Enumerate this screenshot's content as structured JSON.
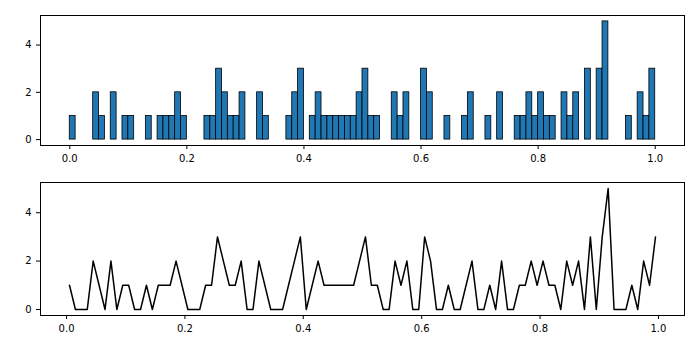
{
  "chart_data": [
    {
      "type": "histogram",
      "bins": [
        0,
        0.01,
        0.02,
        0.03,
        0.04,
        0.05,
        0.06,
        0.07,
        0.08,
        0.09,
        0.1,
        0.11,
        0.12,
        0.13,
        0.14,
        0.15,
        0.16,
        0.17,
        0.18,
        0.19,
        0.2,
        0.21,
        0.22,
        0.23,
        0.24,
        0.25,
        0.26,
        0.27,
        0.28,
        0.29,
        0.3,
        0.31,
        0.32,
        0.33,
        0.34,
        0.35,
        0.36,
        0.37,
        0.38,
        0.39,
        0.4,
        0.41,
        0.42,
        0.43,
        0.44,
        0.45,
        0.46,
        0.47,
        0.48,
        0.49,
        0.5,
        0.51,
        0.52,
        0.53,
        0.54,
        0.55,
        0.56,
        0.57,
        0.58,
        0.59,
        0.6,
        0.61,
        0.62,
        0.63,
        0.64,
        0.65,
        0.66,
        0.67,
        0.68,
        0.69,
        0.7,
        0.71,
        0.72,
        0.73,
        0.74,
        0.75,
        0.76,
        0.77,
        0.78,
        0.79,
        0.8,
        0.81,
        0.82,
        0.83,
        0.84,
        0.85,
        0.86,
        0.87,
        0.88,
        0.89,
        0.9,
        0.91,
        0.92,
        0.93,
        0.94,
        0.95,
        0.96,
        0.97,
        0.98,
        0.99,
        1
      ],
      "values": [
        1,
        0,
        0,
        0,
        2,
        1,
        0,
        2,
        0,
        1,
        1,
        0,
        0,
        1,
        0,
        1,
        1,
        1,
        2,
        1,
        0,
        0,
        0,
        1,
        1,
        3,
        2,
        1,
        1,
        2,
        0,
        0,
        2,
        1,
        0,
        0,
        0,
        1,
        2,
        3,
        0,
        1,
        2,
        1,
        1,
        1,
        1,
        1,
        1,
        2,
        3,
        1,
        1,
        0,
        0,
        2,
        1,
        2,
        0,
        0,
        3,
        2,
        0,
        0,
        1,
        0,
        0,
        1,
        2,
        0,
        0,
        1,
        0,
        2,
        0,
        0,
        1,
        1,
        2,
        1,
        2,
        1,
        1,
        0,
        2,
        1,
        2,
        0,
        3,
        0,
        3,
        5,
        0,
        0,
        0,
        1,
        0,
        2,
        1,
        3
      ],
      "color": "#1f77b4",
      "xlim": [
        -0.05,
        1.05
      ],
      "ylim": [
        -0.25,
        5.25
      ],
      "xticks": [
        {
          "value": 0,
          "label": "0.0"
        },
        {
          "value": 0.2,
          "label": "0.2"
        },
        {
          "value": 0.4,
          "label": "0.4"
        },
        {
          "value": 0.6,
          "label": "0.6"
        },
        {
          "value": 0.8,
          "label": "0.8"
        },
        {
          "value": 1,
          "label": "1.0"
        }
      ],
      "yticks": [
        0,
        2,
        4
      ]
    },
    {
      "type": "line",
      "x": [
        0.005,
        0.015,
        0.025,
        0.035,
        0.045,
        0.055,
        0.065,
        0.075,
        0.085,
        0.095,
        0.105,
        0.115,
        0.125,
        0.135,
        0.145,
        0.155,
        0.165,
        0.175,
        0.185,
        0.195,
        0.205,
        0.215,
        0.225,
        0.235,
        0.245,
        0.255,
        0.265,
        0.275,
        0.285,
        0.295,
        0.305,
        0.315,
        0.325,
        0.335,
        0.345,
        0.355,
        0.365,
        0.375,
        0.385,
        0.395,
        0.405,
        0.415,
        0.425,
        0.435,
        0.445,
        0.455,
        0.465,
        0.475,
        0.485,
        0.495,
        0.505,
        0.515,
        0.525,
        0.535,
        0.545,
        0.555,
        0.565,
        0.575,
        0.585,
        0.595,
        0.605,
        0.615,
        0.625,
        0.635,
        0.645,
        0.655,
        0.665,
        0.675,
        0.685,
        0.695,
        0.705,
        0.715,
        0.725,
        0.735,
        0.745,
        0.755,
        0.765,
        0.775,
        0.785,
        0.795,
        0.805,
        0.815,
        0.825,
        0.835,
        0.845,
        0.855,
        0.865,
        0.875,
        0.885,
        0.895,
        0.905,
        0.915,
        0.925,
        0.935,
        0.945,
        0.955,
        0.965,
        0.975,
        0.985,
        0.995
      ],
      "values": [
        1,
        0,
        0,
        0,
        2,
        1,
        0,
        2,
        0,
        1,
        1,
        0,
        0,
        1,
        0,
        1,
        1,
        1,
        2,
        1,
        0,
        0,
        0,
        1,
        1,
        3,
        2,
        1,
        1,
        2,
        0,
        0,
        2,
        1,
        0,
        0,
        0,
        1,
        2,
        3,
        0,
        1,
        2,
        1,
        1,
        1,
        1,
        1,
        1,
        2,
        3,
        1,
        1,
        0,
        0,
        2,
        1,
        2,
        0,
        0,
        3,
        2,
        0,
        0,
        1,
        0,
        0,
        1,
        2,
        0,
        0,
        1,
        0,
        2,
        0,
        0,
        1,
        1,
        2,
        1,
        2,
        1,
        1,
        0,
        2,
        1,
        2,
        0,
        3,
        0,
        3,
        5,
        0,
        0,
        0,
        1,
        0,
        2,
        1,
        3
      ],
      "color": "#000000",
      "xlim": [
        -0.044,
        1.044
      ],
      "ylim": [
        -0.25,
        5.25
      ],
      "xticks": [
        {
          "value": 0,
          "label": "0.0"
        },
        {
          "value": 0.2,
          "label": "0.2"
        },
        {
          "value": 0.4,
          "label": "0.4"
        },
        {
          "value": 0.6,
          "label": "0.6"
        },
        {
          "value": 0.8,
          "label": "0.8"
        },
        {
          "value": 1,
          "label": "1.0"
        }
      ],
      "yticks": [
        0,
        2,
        4
      ]
    }
  ]
}
